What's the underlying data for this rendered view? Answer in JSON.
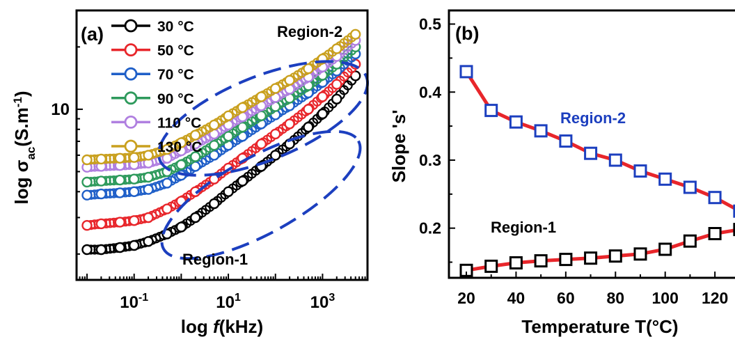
{
  "chart_data": [
    {
      "panel": "(a)",
      "type": "scatter",
      "xlabel": "log f(kHz)",
      "xlabel_prefix": "log ",
      "xlabel_var": "f",
      "xlabel_unit": "(kHz)",
      "ylabel": "log σac(S.m-1)",
      "xscale": "log",
      "yscale": "log",
      "xlim": [
        0.006,
        9000
      ],
      "ylim": [
        1.5,
        30
      ],
      "x_ticks": [
        {
          "value": 0.1,
          "base": "10",
          "exp": "-1"
        },
        {
          "value": 10,
          "base": "10",
          "exp": "1"
        },
        {
          "value": 1000,
          "base": "10",
          "exp": "3"
        }
      ],
      "y_ticks": [
        {
          "value": 10,
          "label": "10"
        }
      ],
      "legend_position": "top-left",
      "series": [
        {
          "name": "30 °C",
          "color": "#000000",
          "x": [
            0.01,
            0.02,
            0.05,
            0.1,
            0.2,
            0.5,
            1,
            2,
            5,
            10,
            20,
            50,
            100,
            200,
            500,
            1000,
            2000,
            5000
          ],
          "y": [
            2.1,
            2.1,
            2.15,
            2.2,
            2.3,
            2.5,
            2.7,
            3.0,
            3.5,
            4.0,
            4.5,
            5.3,
            6.0,
            6.8,
            8.2,
            9.5,
            11.2,
            14.5
          ]
        },
        {
          "name": "50 °C",
          "color": "#e8262b",
          "x": [
            0.01,
            0.02,
            0.05,
            0.1,
            0.2,
            0.5,
            1,
            2,
            5,
            10,
            20,
            50,
            100,
            200,
            500,
            1000,
            2000,
            5000
          ],
          "y": [
            2.75,
            2.8,
            2.85,
            2.9,
            3.0,
            3.3,
            3.6,
            4.0,
            4.6,
            5.2,
            5.8,
            6.8,
            7.6,
            8.5,
            10.0,
            11.5,
            13.2,
            16.5
          ]
        },
        {
          "name": "70 °C",
          "color": "#1f5fc8",
          "x": [
            0.01,
            0.02,
            0.05,
            0.1,
            0.2,
            0.5,
            1,
            2,
            5,
            10,
            20,
            50,
            100,
            200,
            500,
            1000,
            2000,
            5000
          ],
          "y": [
            3.85,
            3.9,
            3.95,
            4.0,
            4.1,
            4.4,
            4.8,
            5.3,
            6.0,
            6.7,
            7.4,
            8.5,
            9.4,
            10.4,
            12.0,
            13.5,
            15.3,
            18.5
          ]
        },
        {
          "name": "90 °C",
          "color": "#2e9a5c",
          "x": [
            0.01,
            0.02,
            0.05,
            0.1,
            0.2,
            0.5,
            1,
            2,
            5,
            10,
            20,
            50,
            100,
            200,
            500,
            1000,
            2000,
            5000
          ],
          "y": [
            4.45,
            4.5,
            4.55,
            4.6,
            4.7,
            5.0,
            5.4,
            5.9,
            6.7,
            7.4,
            8.2,
            9.3,
            10.3,
            11.3,
            13.0,
            14.6,
            16.5,
            20.0
          ]
        },
        {
          "name": "110 °C",
          "color": "#b07fe0",
          "x": [
            0.01,
            0.02,
            0.05,
            0.1,
            0.2,
            0.5,
            1,
            2,
            5,
            10,
            20,
            50,
            100,
            200,
            500,
            1000,
            2000,
            5000
          ],
          "y": [
            5.25,
            5.3,
            5.35,
            5.4,
            5.5,
            5.8,
            6.3,
            6.8,
            7.6,
            8.4,
            9.2,
            10.4,
            11.4,
            12.5,
            14.3,
            16.0,
            18.0,
            21.5
          ]
        },
        {
          "name": "130 °C",
          "color": "#c9a01e",
          "x": [
            0.01,
            0.02,
            0.05,
            0.1,
            0.2,
            0.5,
            1,
            2,
            5,
            10,
            20,
            50,
            100,
            200,
            500,
            1000,
            2000,
            5000
          ],
          "y": [
            5.7,
            5.75,
            5.8,
            5.85,
            6.0,
            6.4,
            6.9,
            7.5,
            8.4,
            9.3,
            10.2,
            11.5,
            12.6,
            13.8,
            15.7,
            17.5,
            19.6,
            23.0
          ]
        }
      ],
      "annotations": [
        "Region-2",
        "Region-1"
      ]
    },
    {
      "panel": "(b)",
      "type": "line",
      "xlabel": "Temperature T(°C)",
      "ylabel": "Slope 's'",
      "xlim": [
        13,
        132
      ],
      "ylim": [
        0.127,
        0.52
      ],
      "x_ticks": [
        20,
        40,
        60,
        80,
        100,
        120
      ],
      "y_ticks": [
        0.2,
        0.3,
        0.4,
        0.5
      ],
      "line_color": "#e8262b",
      "series": [
        {
          "name": "Region-2",
          "marker_color": "#1c3fbf",
          "x": [
            20,
            30,
            40,
            50,
            60,
            70,
            80,
            90,
            100,
            110,
            120,
            130
          ],
          "y": [
            0.43,
            0.373,
            0.356,
            0.343,
            0.328,
            0.31,
            0.3,
            0.284,
            0.272,
            0.26,
            0.245,
            0.225
          ]
        },
        {
          "name": "Region-1",
          "marker_color": "#000000",
          "x": [
            20,
            30,
            40,
            50,
            60,
            70,
            80,
            90,
            100,
            110,
            120,
            130
          ],
          "y": [
            0.138,
            0.144,
            0.149,
            0.152,
            0.154,
            0.156,
            0.159,
            0.162,
            0.169,
            0.181,
            0.192,
            0.198
          ]
        }
      ]
    }
  ]
}
